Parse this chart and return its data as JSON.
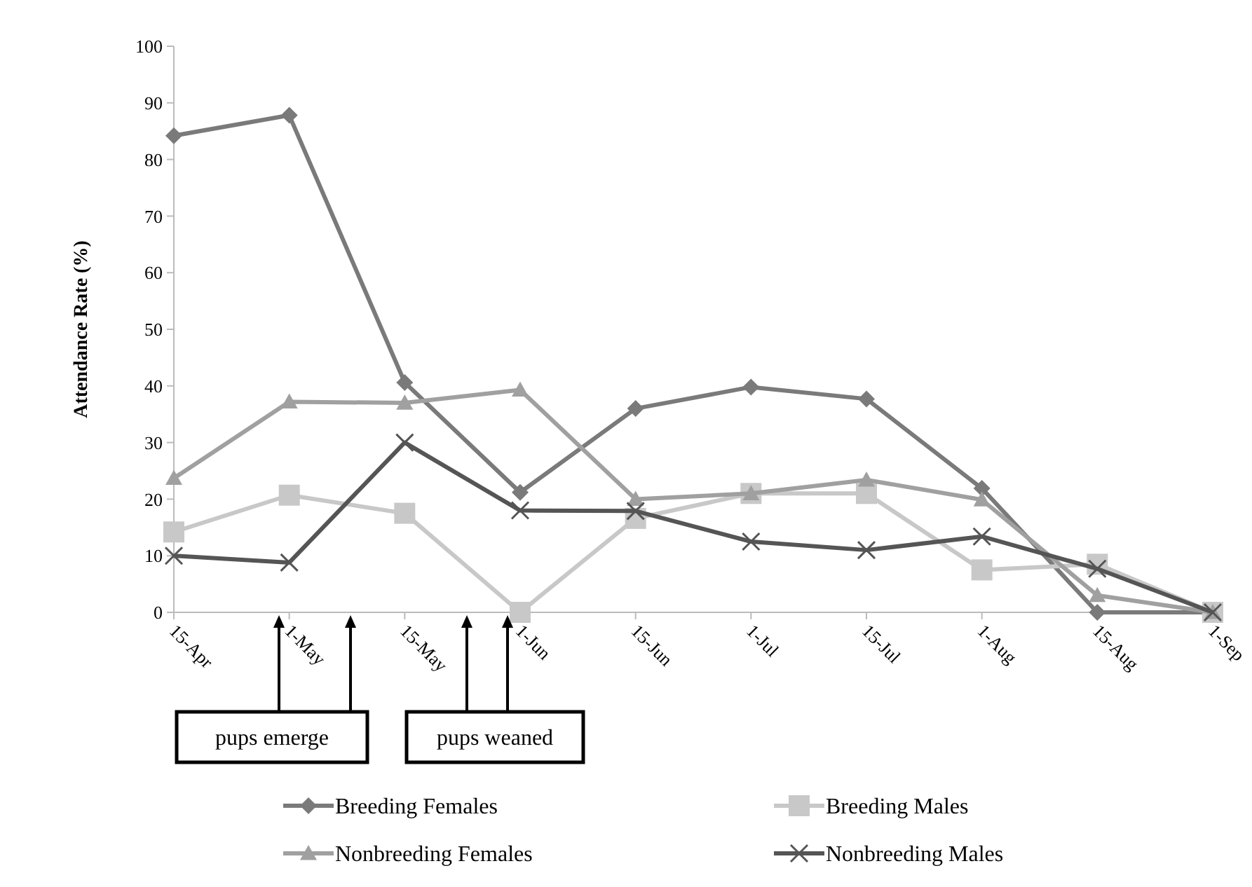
{
  "chart_data": {
    "type": "line",
    "ylabel": "Attendance Rate (%)",
    "categories": [
      "15-Apr",
      "1-May",
      "15-May",
      "1-Jun",
      "15-Jun",
      "1-Jul",
      "15-Jul",
      "1-Aug",
      "15-Aug",
      "1-Sep"
    ],
    "series": [
      {
        "name": "Breeding Females",
        "color": "#7a7a7a",
        "marker": "diamond",
        "values": [
          84.2,
          87.8,
          40.6,
          21.2,
          36,
          39.8,
          37.7,
          21.9,
          0,
          0
        ]
      },
      {
        "name": "Breeding Males",
        "color": "#c8c8c8",
        "marker": "square",
        "values": [
          14.2,
          20.7,
          17.5,
          0,
          16.6,
          21,
          21,
          7.5,
          8.5,
          0
        ]
      },
      {
        "name": "Nonbreeding Females",
        "color": "#a0a0a0",
        "marker": "triangle",
        "values": [
          23.7,
          37.2,
          37,
          39.3,
          20,
          21,
          23.4,
          19.9,
          3,
          0
        ]
      },
      {
        "name": "Nonbreeding Males",
        "color": "#555555",
        "marker": "cross",
        "values": [
          10,
          8.8,
          30,
          18,
          17.9,
          12.5,
          11,
          13.4,
          7.7,
          0
        ]
      }
    ],
    "ylim": [
      0,
      100
    ],
    "yticks": [
      0,
      10,
      20,
      30,
      40,
      50,
      60,
      70,
      80,
      90,
      100
    ],
    "annotations": [
      "pups emerge",
      "pups weaned"
    ],
    "legend": "bottom",
    "grid": false
  }
}
